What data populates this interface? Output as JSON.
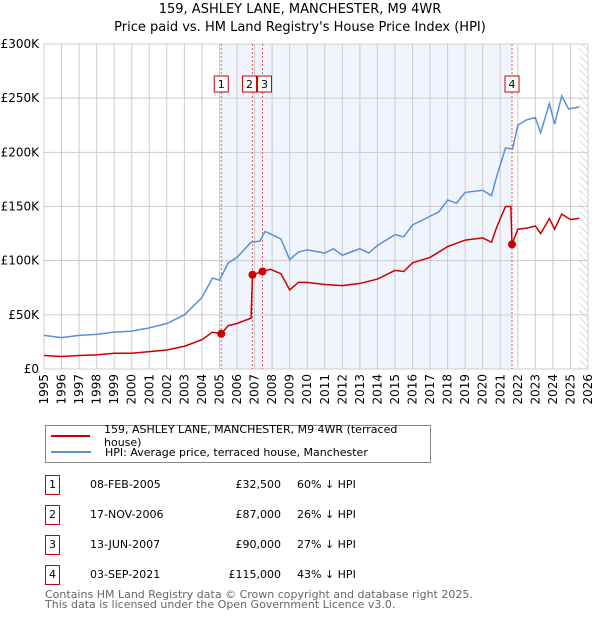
{
  "chart_data": {
    "type": "line",
    "title": "159, ASHLEY LANE, MANCHESTER, M9 4WR",
    "subtitle": "Price paid vs. HM Land Registry's House Price Index (HPI)",
    "xlim": [
      1995,
      2026
    ],
    "ylim": [
      0,
      300000
    ],
    "x_ticks": [
      "1995",
      "1996",
      "1997",
      "1998",
      "1999",
      "2000",
      "2001",
      "2002",
      "2003",
      "2004",
      "2005",
      "2006",
      "2007",
      "2008",
      "2009",
      "2010",
      "2011",
      "2012",
      "2013",
      "2014",
      "2015",
      "2016",
      "2017",
      "2018",
      "2019",
      "2020",
      "2021",
      "2022",
      "2023",
      "2024",
      "2025",
      "2026"
    ],
    "y_ticks": [
      {
        "v": 0,
        "label": "£0"
      },
      {
        "v": 50000,
        "label": "£50K"
      },
      {
        "v": 100000,
        "label": "£100K"
      },
      {
        "v": 150000,
        "label": "£150K"
      },
      {
        "v": 200000,
        "label": "£200K"
      },
      {
        "v": 250000,
        "label": "£250K"
      },
      {
        "v": 300000,
        "label": "£300K"
      }
    ],
    "shaded_range": [
      2005.1,
      2021.67
    ],
    "hatched_from": 2025.5,
    "series": [
      {
        "name": "159, ASHLEY LANE, MANCHESTER, M9 4WR (terraced house)",
        "color": "#cc0000",
        "points": [
          [
            1995,
            12500
          ],
          [
            1996,
            11500
          ],
          [
            1997,
            12500
          ],
          [
            1998,
            13000
          ],
          [
            1999,
            14500
          ],
          [
            2000,
            14500
          ],
          [
            2001,
            16000
          ],
          [
            2002,
            17500
          ],
          [
            2003,
            21000
          ],
          [
            2004,
            27000
          ],
          [
            2004.6,
            34000
          ],
          [
            2005.1,
            32500
          ],
          [
            2005.5,
            40000
          ],
          [
            2006,
            42000
          ],
          [
            2006.8,
            47000
          ],
          [
            2006.88,
            87000
          ],
          [
            2007.45,
            90000
          ],
          [
            2007.9,
            92000
          ],
          [
            2008.5,
            88000
          ],
          [
            2009,
            73000
          ],
          [
            2009.5,
            80000
          ],
          [
            2010,
            80000
          ],
          [
            2011,
            78000
          ],
          [
            2012,
            77000
          ],
          [
            2013,
            79000
          ],
          [
            2014,
            83000
          ],
          [
            2015,
            91000
          ],
          [
            2015.5,
            90000
          ],
          [
            2016,
            98000
          ],
          [
            2017,
            103000
          ],
          [
            2018,
            113000
          ],
          [
            2019,
            119000
          ],
          [
            2020,
            121000
          ],
          [
            2020.5,
            117000
          ],
          [
            2020.8,
            131000
          ],
          [
            2021.3,
            150000
          ],
          [
            2021.6,
            150000
          ],
          [
            2021.67,
            115000
          ],
          [
            2022,
            129000
          ],
          [
            2022.5,
            130000
          ],
          [
            2023,
            132000
          ],
          [
            2023.3,
            125000
          ],
          [
            2023.8,
            139000
          ],
          [
            2024.1,
            129000
          ],
          [
            2024.5,
            143000
          ],
          [
            2025,
            138000
          ],
          [
            2025.5,
            139000
          ]
        ]
      },
      {
        "name": "HPI: Average price, terraced house, Manchester",
        "color": "#5b8fd6",
        "points": [
          [
            1995,
            31000
          ],
          [
            1996,
            29000
          ],
          [
            1997,
            31000
          ],
          [
            1998,
            32000
          ],
          [
            1999,
            34000
          ],
          [
            2000,
            35000
          ],
          [
            2001,
            38000
          ],
          [
            2002,
            42000
          ],
          [
            2003,
            50000
          ],
          [
            2004,
            66000
          ],
          [
            2004.6,
            84000
          ],
          [
            2005,
            82000
          ],
          [
            2005.5,
            98000
          ],
          [
            2006,
            103000
          ],
          [
            2006.8,
            117000
          ],
          [
            2007.3,
            118000
          ],
          [
            2007.6,
            127000
          ],
          [
            2008,
            124000
          ],
          [
            2008.5,
            120000
          ],
          [
            2009,
            101000
          ],
          [
            2009.5,
            108000
          ],
          [
            2010,
            110000
          ],
          [
            2011,
            107000
          ],
          [
            2011.5,
            111000
          ],
          [
            2012,
            105000
          ],
          [
            2013,
            111000
          ],
          [
            2013.5,
            107000
          ],
          [
            2014,
            114000
          ],
          [
            2015,
            124000
          ],
          [
            2015.5,
            122000
          ],
          [
            2016,
            133000
          ],
          [
            2017,
            141000
          ],
          [
            2017.5,
            145000
          ],
          [
            2018,
            156000
          ],
          [
            2018.5,
            153000
          ],
          [
            2019,
            163000
          ],
          [
            2020,
            165000
          ],
          [
            2020.5,
            160000
          ],
          [
            2020.8,
            178000
          ],
          [
            2021.3,
            204000
          ],
          [
            2021.7,
            203000
          ],
          [
            2022,
            225000
          ],
          [
            2022.5,
            230000
          ],
          [
            2023,
            232000
          ],
          [
            2023.3,
            218000
          ],
          [
            2023.8,
            245000
          ],
          [
            2024.1,
            226000
          ],
          [
            2024.5,
            252000
          ],
          [
            2024.9,
            240000
          ],
          [
            2025.5,
            242000
          ]
        ]
      }
    ],
    "sales": [
      {
        "n": "1",
        "date": "08-FEB-2005",
        "x": 2005.1,
        "price": "£32,500",
        "value": 32500,
        "hpi": "60% ↓ HPI"
      },
      {
        "n": "2",
        "date": "17-NOV-2006",
        "x": 2006.88,
        "price": "£87,000",
        "value": 87000,
        "hpi": "26% ↓ HPI"
      },
      {
        "n": "3",
        "date": "13-JUN-2007",
        "x": 2007.45,
        "price": "£90,000",
        "value": 90000,
        "hpi": "27% ↓ HPI"
      },
      {
        "n": "4",
        "date": "03-SEP-2021",
        "x": 2021.67,
        "price": "£115,000",
        "value": 115000,
        "hpi": "43% ↓ HPI"
      }
    ]
  },
  "footer": {
    "line1": "Contains HM Land Registry data © Crown copyright and database right 2025.",
    "line2": "This data is licensed under the Open Government Licence v3.0."
  }
}
